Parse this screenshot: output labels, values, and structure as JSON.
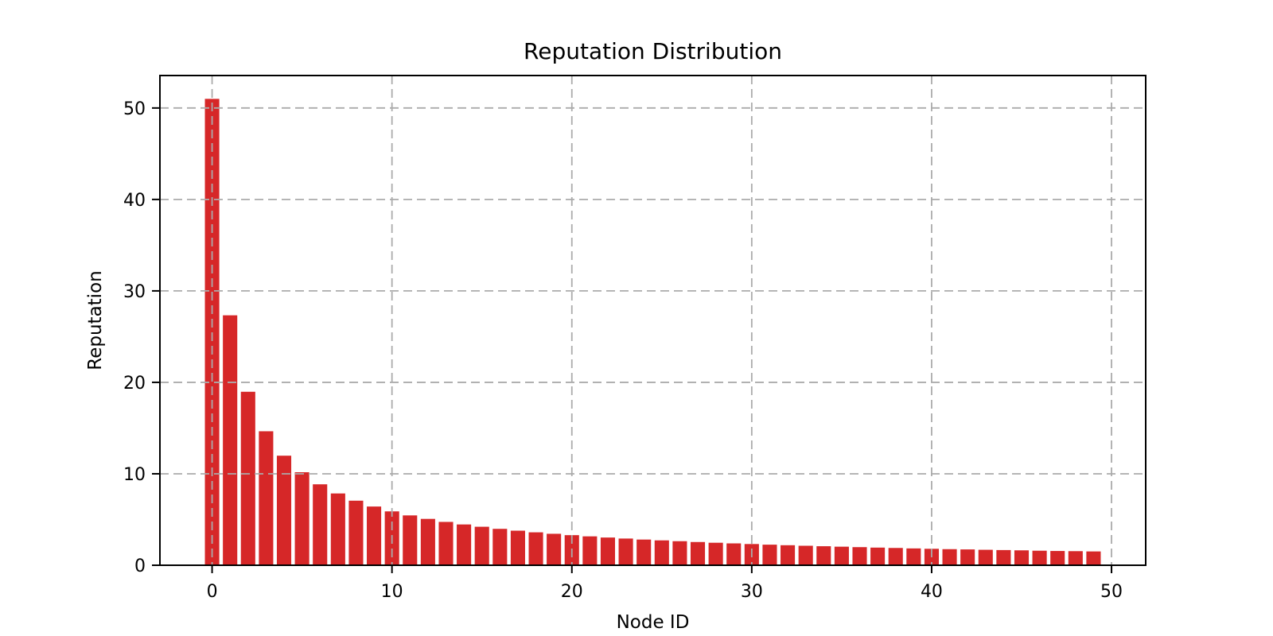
{
  "chart_data": {
    "type": "bar",
    "title": "Reputation Distribution",
    "xlabel": "Node ID",
    "ylabel": "Reputation",
    "x": [
      0,
      1,
      2,
      3,
      4,
      5,
      6,
      7,
      8,
      9,
      10,
      11,
      12,
      13,
      14,
      15,
      16,
      17,
      18,
      19,
      20,
      21,
      22,
      23,
      24,
      25,
      26,
      27,
      28,
      29,
      30,
      31,
      32,
      33,
      34,
      35,
      36,
      37,
      38,
      39,
      40,
      41,
      42,
      43,
      44,
      45,
      46,
      47,
      48,
      49
    ],
    "values": [
      51.0,
      27.33,
      18.97,
      14.65,
      11.98,
      10.17,
      8.85,
      7.85,
      7.06,
      6.42,
      5.89,
      5.45,
      5.07,
      4.74,
      4.46,
      4.21,
      3.98,
      3.78,
      3.6,
      3.44,
      3.29,
      3.16,
      3.03,
      2.92,
      2.81,
      2.72,
      2.63,
      2.54,
      2.46,
      2.39,
      2.32,
      2.25,
      2.19,
      2.13,
      2.08,
      2.03,
      1.98,
      1.93,
      1.89,
      1.84,
      1.8,
      1.76,
      1.73,
      1.69,
      1.66,
      1.63,
      1.59,
      1.56,
      1.54,
      1.51
    ],
    "xticks": [
      0,
      10,
      20,
      30,
      40,
      50
    ],
    "yticks": [
      0,
      10,
      20,
      30,
      40,
      50
    ],
    "xlim": [
      -2.9,
      51.9
    ],
    "ylim": [
      0,
      53.55
    ],
    "bar_width": 0.8,
    "bar_color": "#d62728",
    "grid": true,
    "grid_color": "#ababab",
    "grid_style": "dashed",
    "grid_over_bars": true,
    "spine_color": "#000000",
    "background_color": "#ffffff",
    "legend_position": "none"
  }
}
